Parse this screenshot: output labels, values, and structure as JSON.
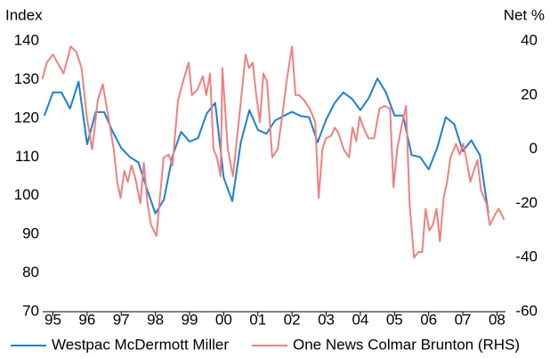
{
  "chart_data": {
    "type": "line",
    "y_label": "Index",
    "y2_label": "Net %",
    "xlim": [
      1994.7,
      2008.25
    ],
    "xticks": [
      {
        "value": 1995,
        "label": "95"
      },
      {
        "value": 1996,
        "label": "96"
      },
      {
        "value": 1997,
        "label": "97"
      },
      {
        "value": 1998,
        "label": "98"
      },
      {
        "value": 1999,
        "label": "99"
      },
      {
        "value": 2000,
        "label": "00"
      },
      {
        "value": 2001,
        "label": "01"
      },
      {
        "value": 2002,
        "label": "02"
      },
      {
        "value": 2003,
        "label": "03"
      },
      {
        "value": 2004,
        "label": "04"
      },
      {
        "value": 2005,
        "label": "05"
      },
      {
        "value": 2006,
        "label": "06"
      },
      {
        "value": 2007,
        "label": "07"
      },
      {
        "value": 2008,
        "label": "08"
      }
    ],
    "ylim": [
      70,
      140
    ],
    "yticks": [
      70,
      80,
      90,
      100,
      110,
      120,
      130,
      140
    ],
    "y2lim": [
      -60,
      40
    ],
    "y2ticks": [
      -60,
      -40,
      -20,
      0,
      20,
      40
    ],
    "grid": false,
    "series": [
      {
        "name": "Westpac McDermott Miller",
        "color": "#1a7fd6",
        "axis": "y",
        "x": [
          1994.75,
          1995.0,
          1995.25,
          1995.5,
          1995.75,
          1996.0,
          1996.25,
          1996.5,
          1996.75,
          1997.0,
          1997.25,
          1997.5,
          1997.75,
          1998.0,
          1998.25,
          1998.5,
          1998.75,
          1999.0,
          1999.25,
          1999.5,
          1999.75,
          2000.0,
          2000.25,
          2000.5,
          2000.75,
          2001.0,
          2001.25,
          2001.5,
          2001.75,
          2002.0,
          2002.25,
          2002.5,
          2002.75,
          2003.0,
          2003.25,
          2003.5,
          2003.75,
          2004.0,
          2004.25,
          2004.5,
          2004.75,
          2005.0,
          2005.25,
          2005.5,
          2005.75,
          2006.0,
          2006.25,
          2006.5,
          2006.75,
          2007.0,
          2007.25,
          2007.5,
          2007.75
        ],
        "values": [
          120.7,
          126.7,
          126.7,
          122.5,
          129.5,
          113.3,
          121.6,
          121.6,
          116.5,
          112.3,
          110,
          108.6,
          101.8,
          95.4,
          99,
          110.2,
          116.5,
          114,
          114.9,
          121.2,
          124,
          104.6,
          98.6,
          113.8,
          122.1,
          117,
          116,
          119.4,
          120.6,
          121.7,
          120.6,
          120.3,
          113.8,
          119.7,
          124,
          126.7,
          125.1,
          122.1,
          125.3,
          130.3,
          126.7,
          120.7,
          120.7,
          110.5,
          110,
          106.8,
          112.3,
          120.3,
          118.5,
          111.5,
          114.3,
          110.5,
          95.4
        ]
      },
      {
        "name": "One News Colmar Brunton (RHS)",
        "color": "#f08080",
        "axis": "y2",
        "x": [
          1994.69,
          1994.82,
          1995.0,
          1995.13,
          1995.31,
          1995.52,
          1995.68,
          1995.84,
          1995.99,
          1996.15,
          1996.31,
          1996.46,
          1996.62,
          1996.78,
          1996.88,
          1996.98,
          1997.09,
          1997.19,
          1997.3,
          1997.4,
          1997.56,
          1997.66,
          1997.77,
          1997.87,
          1998.03,
          1998.13,
          1998.24,
          1998.39,
          1998.5,
          1998.66,
          1998.81,
          1998.97,
          1999.07,
          1999.23,
          1999.39,
          1999.49,
          1999.6,
          1999.7,
          1999.8,
          1999.91,
          1999.96,
          2000.12,
          2000.27,
          2000.48,
          2000.64,
          2000.74,
          2000.85,
          2000.95,
          2001.06,
          2001.16,
          2001.27,
          2001.42,
          2001.58,
          2001.74,
          2001.84,
          2002.0,
          2002.1,
          2002.21,
          2002.36,
          2002.52,
          2002.68,
          2002.78,
          2002.89,
          2002.99,
          2003.15,
          2003.25,
          2003.36,
          2003.51,
          2003.67,
          2003.77,
          2003.88,
          2003.98,
          2004.09,
          2004.24,
          2004.4,
          2004.56,
          2004.71,
          2004.87,
          2004.97,
          2005.08,
          2005.23,
          2005.34,
          2005.44,
          2005.57,
          2005.7,
          2005.81,
          2005.91,
          2006.02,
          2006.12,
          2006.23,
          2006.33,
          2006.44,
          2006.54,
          2006.64,
          2006.8,
          2006.91,
          2007.01,
          2007.11,
          2007.22,
          2007.32,
          2007.43,
          2007.53,
          2007.69,
          2007.79,
          2007.95,
          2008.05,
          2008.21
        ],
        "values": [
          26,
          32,
          35,
          32,
          28,
          38,
          36,
          30,
          12,
          0,
          18,
          24,
          12,
          0,
          -12,
          -18,
          -8,
          -12,
          -6,
          -10,
          -20,
          -5,
          -20,
          -28,
          -32,
          -18,
          -3,
          -2,
          -6,
          18,
          25,
          32,
          20,
          22,
          27,
          20,
          28,
          0,
          -3,
          -10,
          30,
          0,
          -10,
          15,
          35,
          30,
          32,
          20,
          10,
          28,
          25,
          -3,
          0,
          15,
          25,
          38,
          20,
          20,
          18,
          15,
          10,
          -18,
          0,
          4,
          5,
          8,
          6,
          0,
          -3,
          8,
          3,
          12,
          8,
          4,
          4,
          15,
          16,
          15,
          -14,
          0,
          10,
          16,
          -20,
          -40,
          -38,
          -38,
          -22,
          -30,
          -28,
          -22,
          -34,
          -18,
          -12,
          -3,
          2,
          -2,
          2,
          -4,
          -12,
          -8,
          -4,
          -15,
          -20,
          -28,
          -24,
          -22,
          -26
        ]
      }
    ]
  }
}
